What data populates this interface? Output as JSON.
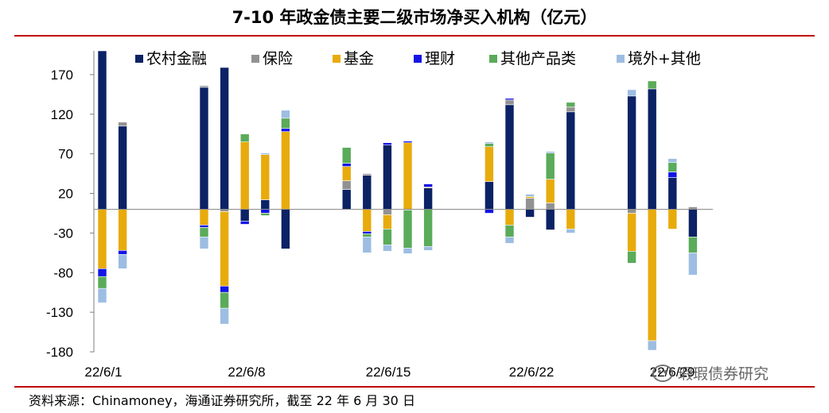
{
  "chart_data": {
    "type": "bar",
    "stacked": true,
    "title": "7-10 年政金债主要二级市场净买入机构（亿元）",
    "ylim": [
      -180,
      200
    ],
    "yticks": [
      170,
      120,
      70,
      20,
      -30,
      -80,
      -130,
      -180
    ],
    "xtick_labels": [
      "22/6/1",
      "22/6/8",
      "22/6/15",
      "22/6/22",
      "22/6/29"
    ],
    "legend_position": "top",
    "series": [
      {
        "name": "农村金融",
        "color": "#0b2265"
      },
      {
        "name": "保险",
        "color": "#929292"
      },
      {
        "name": "基金",
        "color": "#e8ab0c"
      },
      {
        "name": "理财",
        "color": "#1414e6"
      },
      {
        "name": "其他产品类",
        "color": "#5aab5a"
      },
      {
        "name": "境外+其他",
        "color": "#9dbde2"
      }
    ],
    "bars": [
      {
        "pos": 0,
        "values": [
          200,
          0,
          -75,
          -10,
          -15,
          -18
        ]
      },
      {
        "pos": 1,
        "values": [
          105,
          5,
          -52,
          -5,
          0,
          -18
        ]
      },
      {
        "pos": 5,
        "values": [
          154,
          2,
          -20,
          -3,
          -12,
          -15
        ]
      },
      {
        "pos": 6,
        "values": [
          179,
          -3,
          -94,
          -8,
          -20,
          -20
        ]
      },
      {
        "pos": 7,
        "values": [
          -15,
          0,
          85,
          -4,
          10,
          0
        ]
      },
      {
        "pos": 8,
        "values": [
          12,
          0,
          57,
          -5,
          -3,
          2
        ]
      },
      {
        "pos": 9,
        "values": [
          -50,
          0,
          98,
          4,
          13,
          10
        ]
      },
      {
        "pos": 12,
        "values": [
          25,
          11,
          18,
          4,
          20,
          0
        ]
      },
      {
        "pos": 13,
        "values": [
          43,
          2,
          -28,
          -3,
          -4,
          -20
        ]
      },
      {
        "pos": 14,
        "values": [
          81,
          -7,
          -18,
          3,
          -20,
          -8
        ]
      },
      {
        "pos": 15,
        "values": [
          -1,
          0,
          84,
          2,
          -48,
          -7
        ]
      },
      {
        "pos": 16,
        "values": [
          27,
          0,
          1,
          4,
          -47,
          -5
        ]
      },
      {
        "pos": 19,
        "values": [
          35,
          0,
          44,
          -5,
          4,
          2
        ]
      },
      {
        "pos": 20,
        "values": [
          132,
          6,
          -20,
          2,
          -15,
          -8
        ]
      },
      {
        "pos": 21,
        "values": [
          -10,
          14,
          2,
          0,
          0,
          3
        ]
      },
      {
        "pos": 22,
        "values": [
          -26,
          8,
          30,
          0,
          33,
          2
        ]
      },
      {
        "pos": 23,
        "values": [
          123,
          6,
          -25,
          0,
          6,
          -5
        ]
      },
      {
        "pos": 26,
        "values": [
          143,
          -5,
          -48,
          0,
          -15,
          8
        ]
      },
      {
        "pos": 27,
        "values": [
          152,
          0,
          -166,
          0,
          10,
          -12
        ]
      },
      {
        "pos": 28,
        "values": [
          40,
          0,
          -25,
          7,
          12,
          5
        ]
      },
      {
        "pos": 29,
        "values": [
          -35,
          3,
          0,
          0,
          -20,
          -28
        ]
      }
    ]
  },
  "source_note": "资料来源：Chinamoney，海通证券研究所，截至 22 年 6 月 30 日",
  "watermark": "瑕瑕债券研究"
}
